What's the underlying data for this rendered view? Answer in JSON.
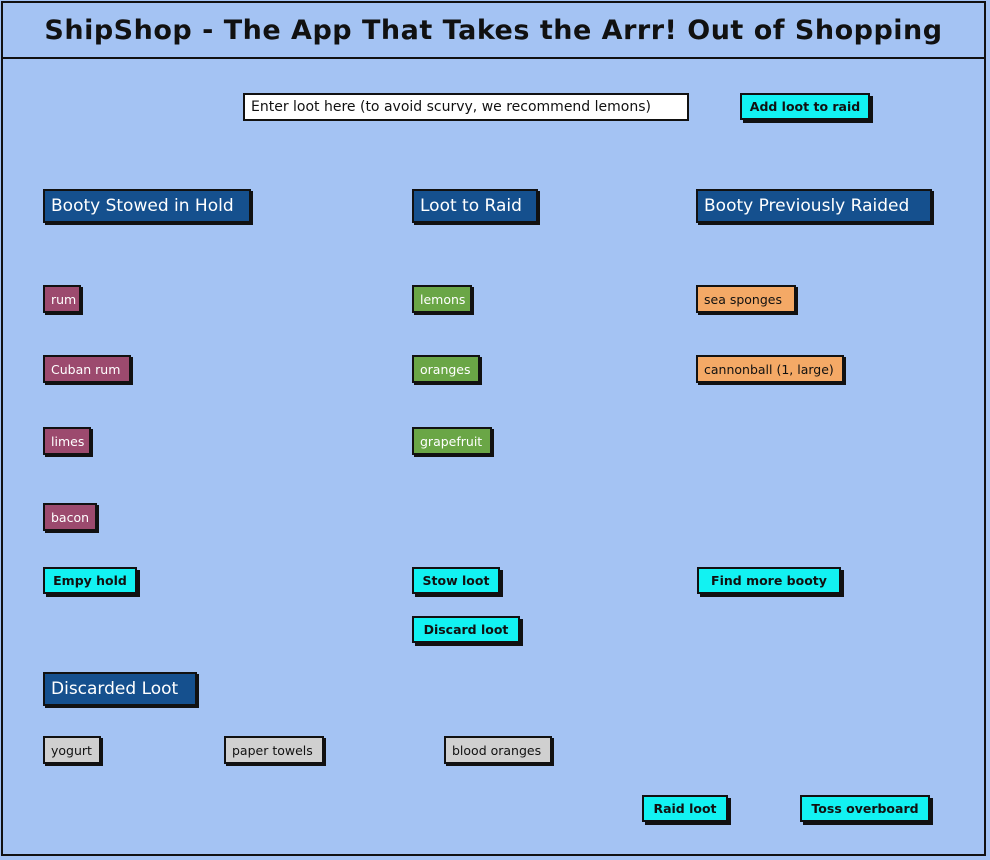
{
  "app": {
    "title": "ShipShop - The App That Takes the Arrr! Out of Shopping"
  },
  "input": {
    "placeholder": "Enter loot here (to avoid scurvy, we recommend lemons)",
    "value": ""
  },
  "buttons": {
    "add_loot": "Add loot to raid",
    "empty_hold": "Empy hold",
    "stow_loot": "Stow loot",
    "discard_loot": "Discard loot",
    "find_more_booty": "Find more booty",
    "raid_loot": "Raid loot",
    "toss_overboard": "Toss overboard"
  },
  "sections": {
    "hold": {
      "title": "Booty Stowed in Hold",
      "items": [
        "rum",
        "Cuban rum",
        "limes",
        "bacon"
      ]
    },
    "raid": {
      "title": "Loot to Raid",
      "items": [
        "lemons",
        "oranges",
        "grapefruit"
      ]
    },
    "previous": {
      "title": "Booty Previously Raided",
      "items": [
        "sea sponges",
        "cannonball (1, large)"
      ]
    },
    "discarded": {
      "title": "Discarded Loot",
      "items": [
        "yogurt",
        "paper towels",
        "blood oranges"
      ]
    }
  },
  "colors": {
    "background": "#a4c3f3",
    "header": "#15508e",
    "button": "#12f2f2",
    "hold_chip": "#9c4a6e",
    "raid_chip": "#6aa646",
    "previous_chip": "#f4a966",
    "discarded_chip": "#d0d0d0"
  }
}
